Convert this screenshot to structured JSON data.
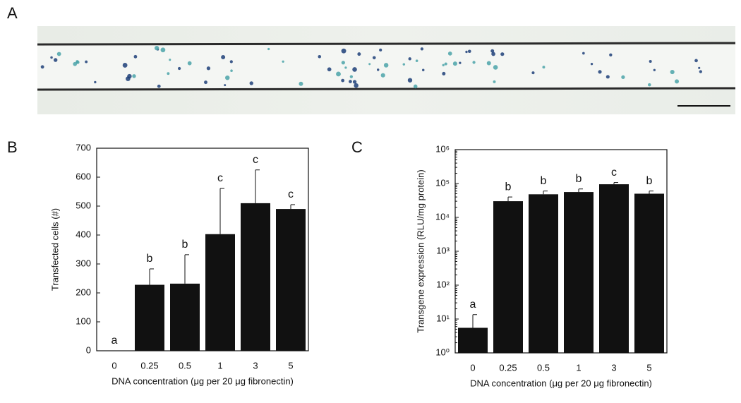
{
  "panel_label": "A",
  "chart_data": [
    {
      "type": "bar",
      "panel_label": "B",
      "ylabel": "Transfected cells (#)",
      "xlabel": "DNA concentration (μg per 20 μg fibronectin)",
      "categories": [
        "0",
        "0.25",
        "0.5",
        "1",
        "3",
        "5"
      ],
      "values": [
        0,
        228,
        232,
        403,
        510,
        490
      ],
      "errors": [
        0,
        55,
        100,
        158,
        115,
        15
      ],
      "annotations": [
        "a",
        "b",
        "b",
        "c",
        "c",
        "c"
      ],
      "color": "#111111",
      "ylim": [
        0,
        700
      ],
      "yticks": [
        0,
        100,
        200,
        300,
        400,
        500,
        600,
        700
      ],
      "log": false
    },
    {
      "type": "bar",
      "panel_label": "C",
      "ylabel": "Transgene expression (RLU/mg protein)",
      "xlabel": "DNA concentration (μg per 20 μg fibronectin)",
      "categories": [
        "0",
        "0.25",
        "0.5",
        "1",
        "3",
        "5"
      ],
      "values": [
        5.5,
        30000,
        48000,
        56000,
        95000,
        50000
      ],
      "errors": [
        8,
        10000,
        12000,
        13000,
        12000,
        10000
      ],
      "annotations": [
        "a",
        "b",
        "b",
        "b",
        "c",
        "b"
      ],
      "color": "#111111",
      "ylim": [
        1,
        1000000
      ],
      "yticks": [
        {
          "value": 1,
          "label": "10⁰"
        },
        {
          "value": 10,
          "label": "10¹"
        },
        {
          "value": 100,
          "label": "10²"
        },
        {
          "value": 1000,
          "label": "10³"
        },
        {
          "value": 10000,
          "label": "10⁴"
        },
        {
          "value": 100000,
          "label": "10⁵"
        },
        {
          "value": 1000000,
          "label": "10⁶"
        }
      ],
      "log": true
    }
  ]
}
